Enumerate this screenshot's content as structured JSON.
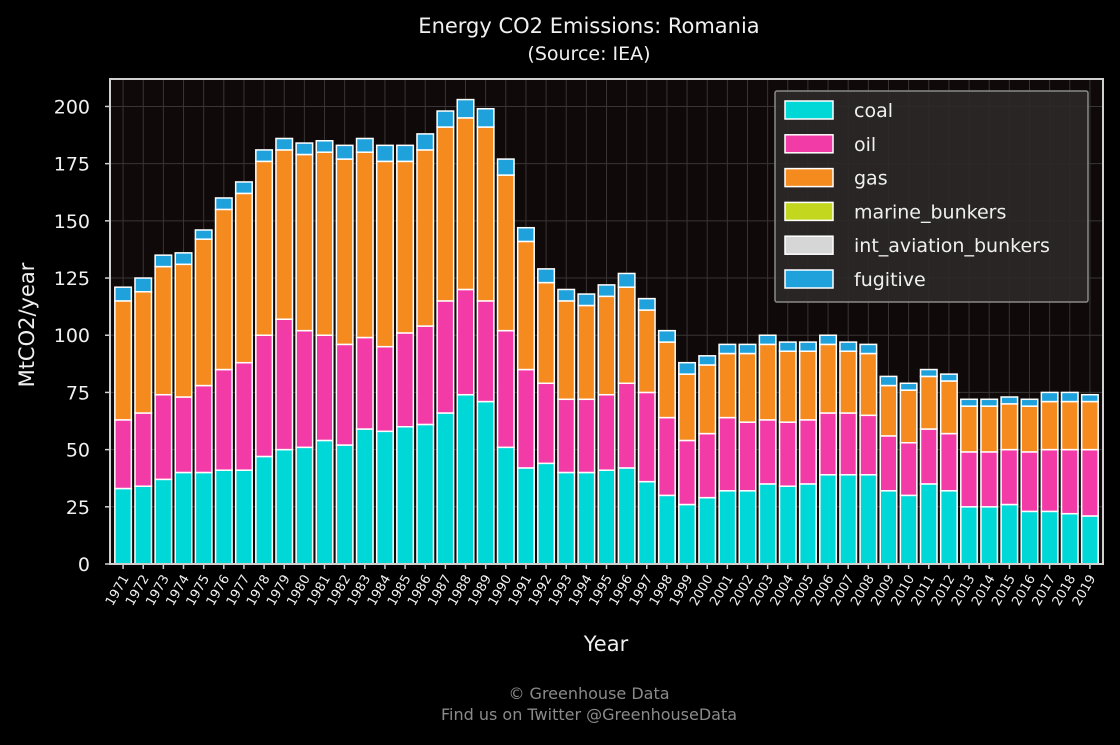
{
  "chart_data": {
    "type": "bar",
    "stacked": true,
    "title": "Energy CO2 Emissions: Romania",
    "subtitle": "(Source: IEA)",
    "xlabel": "Year",
    "ylabel": "MtCO2/year",
    "ylim": [
      0,
      212
    ],
    "yticks": [
      0,
      25,
      50,
      75,
      100,
      125,
      150,
      175,
      200
    ],
    "grid": true,
    "legend_position": "top-right",
    "categories": [
      "1971",
      "1972",
      "1973",
      "1974",
      "1975",
      "1976",
      "1977",
      "1978",
      "1979",
      "1980",
      "1981",
      "1982",
      "1983",
      "1984",
      "1985",
      "1986",
      "1987",
      "1988",
      "1989",
      "1990",
      "1991",
      "1992",
      "1993",
      "1994",
      "1995",
      "1996",
      "1997",
      "1998",
      "1999",
      "2000",
      "2001",
      "2002",
      "2003",
      "2004",
      "2005",
      "2006",
      "2007",
      "2008",
      "2009",
      "2010",
      "2011",
      "2012",
      "2013",
      "2014",
      "2015",
      "2016",
      "2017",
      "2018",
      "2019"
    ],
    "series": [
      {
        "name": "coal",
        "color": "#00d7d7",
        "values": [
          33,
          34,
          37,
          40,
          40,
          41,
          41,
          47,
          50,
          51,
          54,
          52,
          59,
          58,
          60,
          61,
          66,
          74,
          71,
          51,
          42,
          44,
          40,
          40,
          41,
          42,
          36,
          30,
          26,
          29,
          32,
          32,
          35,
          34,
          35,
          39,
          39,
          39,
          32,
          30,
          35,
          32,
          25,
          25,
          26,
          23,
          23,
          22,
          21
        ]
      },
      {
        "name": "oil",
        "color": "#f23ba6",
        "values": [
          30,
          32,
          37,
          33,
          38,
          44,
          47,
          53,
          57,
          51,
          46,
          44,
          40,
          37,
          41,
          43,
          49,
          46,
          44,
          51,
          43,
          35,
          32,
          32,
          33,
          37,
          39,
          34,
          28,
          28,
          32,
          30,
          28,
          28,
          28,
          27,
          27,
          26,
          24,
          23,
          24,
          25,
          24,
          24,
          24,
          26,
          27,
          28,
          29
        ]
      },
      {
        "name": "gas",
        "color": "#f58a1f",
        "values": [
          52,
          53,
          56,
          58,
          64,
          70,
          74,
          76,
          74,
          77,
          80,
          81,
          81,
          81,
          75,
          77,
          76,
          75,
          76,
          68,
          56,
          44,
          43,
          41,
          43,
          42,
          36,
          33,
          29,
          30,
          28,
          30,
          33,
          31,
          30,
          30,
          27,
          27,
          22,
          23,
          23,
          23,
          20,
          20,
          20,
          20,
          21,
          21,
          21
        ]
      },
      {
        "name": "marine_bunkers",
        "color": "#c3d71f",
        "values": [
          0,
          0,
          0,
          0,
          0,
          0,
          0,
          0,
          0,
          0,
          0,
          0,
          0,
          0,
          0,
          0,
          0,
          0,
          0,
          0,
          0,
          0,
          0,
          0,
          0,
          0,
          0,
          0,
          0,
          0,
          0,
          0,
          0,
          0,
          0,
          0,
          0,
          0,
          0,
          0,
          0,
          0,
          0,
          0,
          0,
          0,
          0,
          0,
          0
        ]
      },
      {
        "name": "int_aviation_bunkers",
        "color": "#d6d6d6",
        "values": [
          0,
          0,
          0,
          0,
          0,
          0,
          0,
          0,
          0,
          0,
          0,
          0,
          0,
          0,
          0,
          0,
          0,
          0,
          0,
          0,
          0,
          0,
          0,
          0,
          0,
          0,
          0,
          0,
          0,
          0,
          0,
          0,
          0,
          0,
          0,
          0,
          0,
          0,
          0,
          0,
          0,
          0,
          0,
          0,
          0,
          0,
          0,
          0,
          0
        ]
      },
      {
        "name": "fugitive",
        "color": "#1fa2dc",
        "values": [
          6,
          6,
          5,
          5,
          4,
          5,
          5,
          5,
          5,
          5,
          5,
          6,
          6,
          7,
          7,
          7,
          7,
          8,
          8,
          7,
          6,
          6,
          5,
          5,
          5,
          6,
          5,
          5,
          5,
          4,
          4,
          4,
          4,
          4,
          4,
          4,
          4,
          4,
          4,
          3,
          3,
          3,
          3,
          3,
          3,
          3,
          4,
          4,
          3
        ]
      }
    ]
  },
  "footer": {
    "credit": "© Greenhouse Data",
    "twitter": "Find us on Twitter @GreenhouseData"
  }
}
